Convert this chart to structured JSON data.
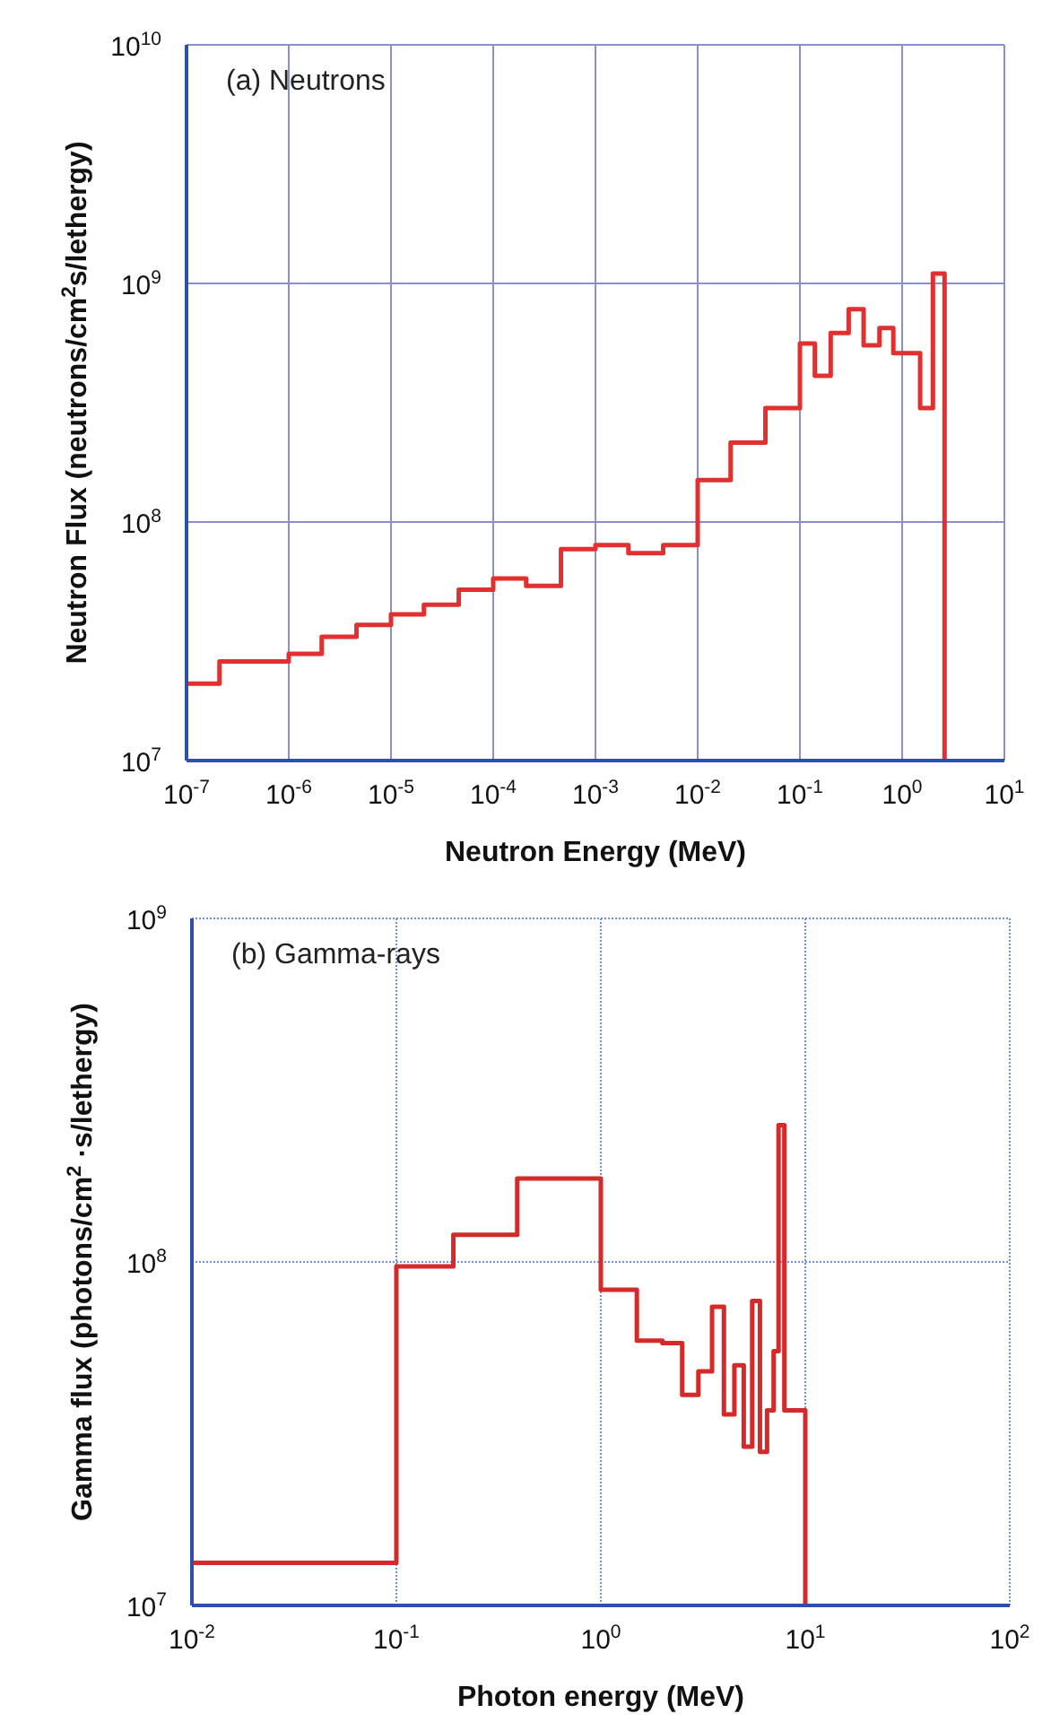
{
  "chart_data": [
    {
      "type": "histogram",
      "title": "(a) Neutrons",
      "xlabel": "Neutron Energy (MeV)",
      "ylabel": "Neutron Flux  (neutrons/cm$^{2}$s/lethergy)",
      "log": "xy",
      "grid": true,
      "color": "#e03030",
      "bins": [
        1e-07,
        2.1e-07,
        1e-06,
        2.1e-06,
        4.6e-06,
        1e-05,
        2.1e-05,
        4.6e-05,
        0.0001,
        0.00021,
        0.00046,
        0.001,
        0.0021,
        0.0046,
        0.01,
        0.021,
        0.046,
        0.1,
        0.14,
        0.2,
        0.3,
        0.42,
        0.6,
        0.82,
        1.5,
        2.0,
        2.6
      ],
      "values": [
        21000000.0,
        26000000.0,
        28000000.0,
        33000000.0,
        37000000.0,
        41000000.0,
        45000000.0,
        52000000.0,
        58000000.0,
        54000000.0,
        77000000.0,
        80000000.0,
        74000000.0,
        80000000.0,
        150000000.0,
        215000000.0,
        300000000.0,
        560000000.0,
        410000000.0,
        620000000.0,
        780000000.0,
        550000000.0,
        650000000.0,
        510000000.0,
        300000000.0,
        1100000000.0
      ],
      "xlim": [
        1e-07,
        10
      ],
      "ylim": [
        10000000.0,
        10000000000.0
      ],
      "xticks": [
        {
          "value": 1e-07,
          "label": "10$^{-7}$"
        },
        {
          "value": 1e-06,
          "label": "10$^{-6}$"
        },
        {
          "value": 1e-05,
          "label": "10$^{-5}$"
        },
        {
          "value": 0.0001,
          "label": "10$^{-4}$"
        },
        {
          "value": 0.001,
          "label": "10$^{-3}$"
        },
        {
          "value": 0.01,
          "label": "10$^{-2}$"
        },
        {
          "value": 0.1,
          "label": "10$^{-1}$"
        },
        {
          "value": 1,
          "label": "10$^{0}$"
        },
        {
          "value": 10,
          "label": "10$^{1}$"
        }
      ],
      "yticks": [
        {
          "value": 10000000.0,
          "label": "10$^{7}$"
        },
        {
          "value": 100000000.0,
          "label": "10$^{8}$"
        },
        {
          "value": 1000000000.0,
          "label": "10$^{9}$"
        },
        {
          "value": 10000000000.0,
          "label": "10$^{10}$"
        }
      ]
    },
    {
      "type": "histogram",
      "title": "(b) Gamma-rays",
      "xlabel": "Photon energy (MeV)",
      "ylabel": "Gamma flux (photons/cm$^{2}$ ·s/lethergy)",
      "log": "xy",
      "grid": true,
      "color": "#d42a2a",
      "bins": [
        0.01,
        0.1,
        0.19,
        0.39,
        1,
        1.5,
        2.0,
        2.5,
        3.0,
        3.5,
        4.0,
        4.5,
        5.0,
        5.5,
        6.0,
        6.5,
        7.0,
        7.4,
        7.9,
        10
      ],
      "values": [
        13300000.0,
        97000000.0,
        120000000.0,
        175000000.0,
        83000000.0,
        59000000.0,
        58000000.0,
        41000000.0,
        48000000.0,
        74000000.0,
        36000000.0,
        50000000.0,
        29000000.0,
        77000000.0,
        28000000.0,
        37000000.0,
        55000000.0,
        250000000.0,
        37000000.0
      ],
      "xlim": [
        0.01,
        100
      ],
      "ylim": [
        10000000.0,
        1000000000.0
      ],
      "xticks": [
        {
          "value": 0.01,
          "label": "10$^{-2}$"
        },
        {
          "value": 0.1,
          "label": "10$^{-1}$"
        },
        {
          "value": 1,
          "label": "10$^{0}$"
        },
        {
          "value": 10,
          "label": "10$^{1}$"
        },
        {
          "value": 100,
          "label": "10$^{2}$"
        }
      ],
      "yticks": [
        {
          "value": 10000000.0,
          "label": "10$^{7}$"
        },
        {
          "value": 100000000.0,
          "label": "10$^{8}$"
        },
        {
          "value": 1000000000.0,
          "label": "10$^{9}$"
        }
      ]
    }
  ]
}
